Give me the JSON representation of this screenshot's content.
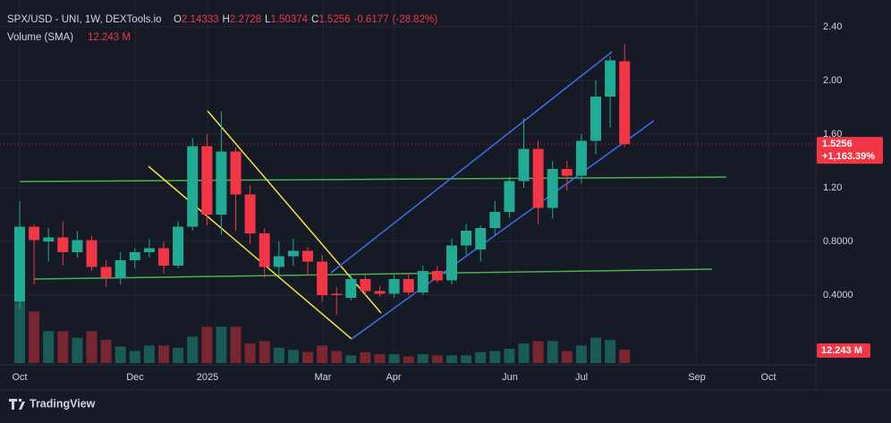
{
  "chart_data": {
    "type": "candlestick",
    "title": "SPX/USD - UNI, 1W, DEXTools.io",
    "legend": {
      "o": "O",
      "h": "H",
      "l": "L",
      "c": "C",
      "change": -0.6177,
      "change_pct": "(-28.82%)",
      "volume_title": "Volume (SMA)"
    },
    "open": [
      0.35,
      0.91,
      0.8,
      0.83,
      0.72,
      0.81,
      0.61,
      0.53,
      0.66,
      0.72,
      0.75,
      0.62,
      0.91,
      1.51,
      1.0,
      1.47,
      1.15,
      0.86,
      0.61,
      0.69,
      0.73,
      0.65,
      0.41,
      0.38,
      0.52,
      0.43,
      0.41,
      0.52,
      0.42,
      0.58,
      0.51,
      0.77,
      0.74,
      0.9,
      1.02,
      1.25,
      1.49,
      1.05,
      1.34,
      1.29,
      1.55,
      1.88,
      2.14333
    ],
    "high": [
      1.1,
      0.93,
      0.9,
      0.95,
      0.88,
      0.84,
      0.66,
      0.72,
      0.75,
      0.82,
      0.8,
      0.95,
      1.57,
      1.6,
      1.77,
      1.5,
      1.22,
      0.9,
      0.8,
      0.82,
      0.76,
      0.7,
      0.46,
      0.56,
      0.55,
      0.47,
      0.55,
      0.56,
      0.62,
      0.62,
      0.82,
      0.93,
      0.92,
      1.1,
      1.28,
      1.72,
      1.55,
      1.4,
      1.4,
      1.6,
      2.0,
      2.18,
      2.2728
    ],
    "low": [
      0.3,
      0.48,
      0.65,
      0.62,
      0.68,
      0.58,
      0.46,
      0.48,
      0.6,
      0.68,
      0.56,
      0.6,
      0.88,
      0.92,
      0.85,
      0.88,
      0.78,
      0.53,
      0.55,
      0.62,
      0.55,
      0.35,
      0.25,
      0.36,
      0.4,
      0.39,
      0.38,
      0.4,
      0.4,
      0.49,
      0.48,
      0.7,
      0.65,
      0.85,
      0.98,
      1.2,
      0.93,
      0.97,
      1.18,
      1.23,
      1.45,
      1.65,
      1.50374
    ],
    "close": [
      0.91,
      0.81,
      0.83,
      0.72,
      0.81,
      0.61,
      0.53,
      0.66,
      0.72,
      0.75,
      0.62,
      0.91,
      1.51,
      1.0,
      1.47,
      1.15,
      0.86,
      0.61,
      0.69,
      0.73,
      0.65,
      0.4,
      0.4,
      0.52,
      0.43,
      0.41,
      0.52,
      0.42,
      0.58,
      0.51,
      0.77,
      0.88,
      0.9,
      1.02,
      1.25,
      1.49,
      1.05,
      1.34,
      1.29,
      1.55,
      1.88,
      2.15,
      1.5256
    ],
    "volume": [
      55,
      47,
      29,
      29,
      23,
      29,
      21,
      15,
      11,
      16,
      16,
      14,
      24,
      33,
      33,
      33,
      18,
      20,
      14,
      12,
      10,
      16,
      11,
      7,
      10,
      8,
      8,
      6,
      8,
      7,
      7,
      7,
      10,
      11,
      13,
      18,
      20,
      20,
      11,
      16,
      23,
      21,
      12.243
    ],
    "volume_last_label": "12.243 M",
    "price_change_label": "+1,163.39%",
    "x_labels": [
      "Oct",
      "Dec",
      "2025",
      "Mar",
      "Apr",
      "Jun",
      "Jul",
      "Sep",
      "Oct"
    ],
    "ylim": [
      -0.12,
      2.6
    ],
    "yticks": [
      {
        "value": 0.4,
        "label": "0.4000"
      },
      {
        "value": 0.8,
        "label": "0.8000"
      },
      {
        "value": 1.2,
        "label": "1.20"
      },
      {
        "value": 1.6,
        "label": "1.60"
      },
      {
        "value": 2.0,
        "label": "2.00"
      },
      {
        "value": 2.4,
        "label": "2.40"
      }
    ],
    "up_color": "#22ab94",
    "down_color": "#f23645",
    "grid": true,
    "brand": "TradingView"
  }
}
